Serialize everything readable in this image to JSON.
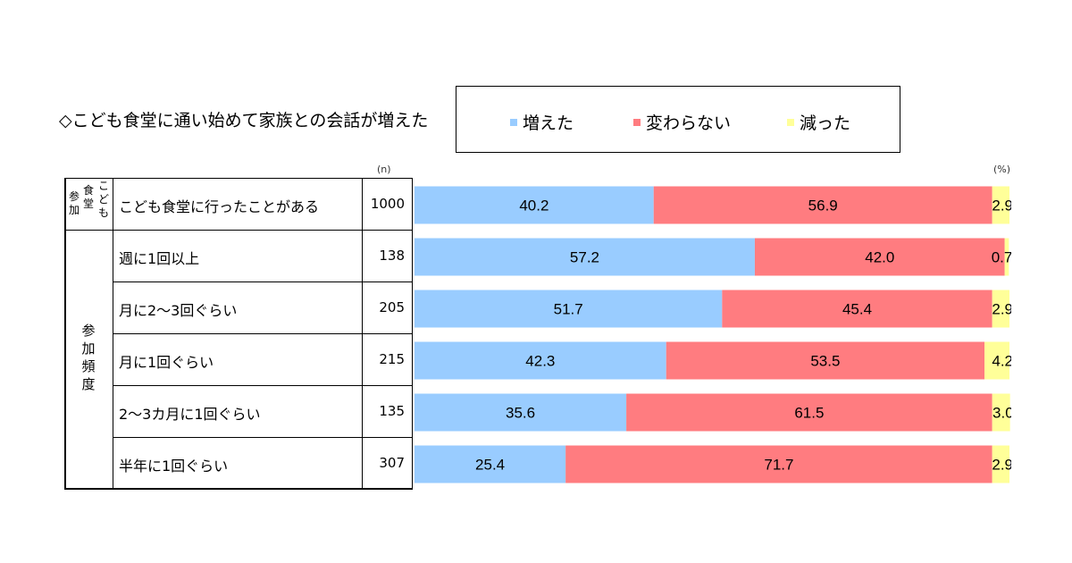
{
  "title": "◇こども食堂に通い始めて家族との会話が増えた",
  "legend": [
    {
      "label": "増えた",
      "color": "#99ccff"
    },
    {
      "label": "変わらない",
      "color": "#ff7c80"
    },
    {
      "label": "減った",
      "color": "#ffff99"
    }
  ],
  "unit_n": "(n)",
  "unit_pct": "(%)",
  "group_labels": {
    "group1_a": "参加",
    "group1_b": "食堂",
    "group1_c": "こども",
    "group2": "参加頻度"
  },
  "chart_data": {
    "type": "bar",
    "orientation": "horizontal",
    "stacked": true,
    "title": "◇こども食堂に通い始めて家族との会話が増えた",
    "categories": [
      "こども食堂に行ったことがある",
      "週に1回以上",
      "月に2～3回ぐらい",
      "月に1回ぐらい",
      "2～3カ月に1回ぐらい",
      "半年に1回ぐらい"
    ],
    "n": [
      "1000",
      "138",
      "205",
      "215",
      "135",
      "307"
    ],
    "series": [
      {
        "name": "増えた",
        "color": "#99ccff",
        "values": [
          40.2,
          57.2,
          51.7,
          42.3,
          35.6,
          25.4
        ]
      },
      {
        "name": "変わらない",
        "color": "#ff7c80",
        "values": [
          56.9,
          42.0,
          45.4,
          53.5,
          61.5,
          71.7
        ]
      },
      {
        "name": "減った",
        "color": "#ffff99",
        "values": [
          2.9,
          0.7,
          2.9,
          4.2,
          3.0,
          2.9
        ]
      }
    ],
    "labels": [
      [
        "40.2",
        "56.9",
        "2.9"
      ],
      [
        "57.2",
        "42.0",
        "0.7"
      ],
      [
        "51.7",
        "45.4",
        "2.9"
      ],
      [
        "42.3",
        "53.5",
        "4.2"
      ],
      [
        "35.6",
        "61.5",
        "3.0"
      ],
      [
        "25.4",
        "71.7",
        "2.9"
      ]
    ],
    "xlim": [
      0,
      100
    ],
    "grid": false,
    "legend_position": "top-right"
  }
}
